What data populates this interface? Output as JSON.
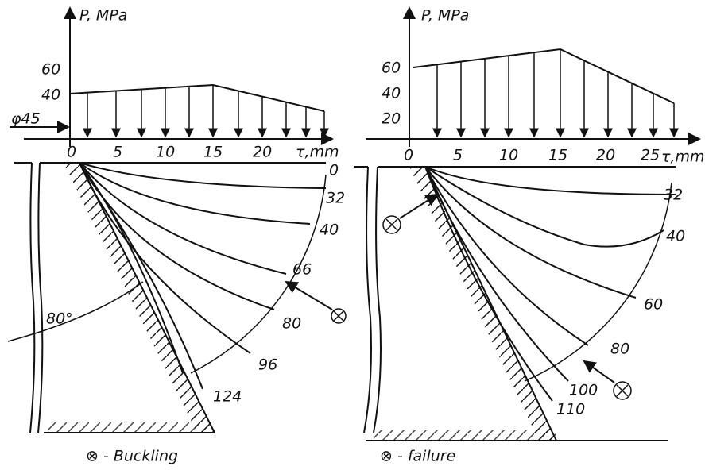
{
  "left": {
    "axis_label": "P, MPa",
    "y_labels": [
      "60",
      "40"
    ],
    "diameter": "φ45",
    "x_labels": [
      "0",
      "5",
      "10",
      "15",
      "20"
    ],
    "x_axis_label": "τ,mm",
    "curve_labels": [
      "0",
      "32",
      "40",
      "66",
      "80",
      "96",
      "124"
    ],
    "angle": "80°",
    "legend": "⊗ - Buckling"
  },
  "right": {
    "axis_label": "P, MPa",
    "y_labels": [
      "60",
      "40",
      "20"
    ],
    "x_labels": [
      "0",
      "5",
      "10",
      "15",
      "20",
      "25"
    ],
    "x_axis_label": "τ,mm",
    "curve_labels": [
      "32",
      "40",
      "60",
      "80",
      "100",
      "110"
    ],
    "legend": "⊗ - failure"
  }
}
